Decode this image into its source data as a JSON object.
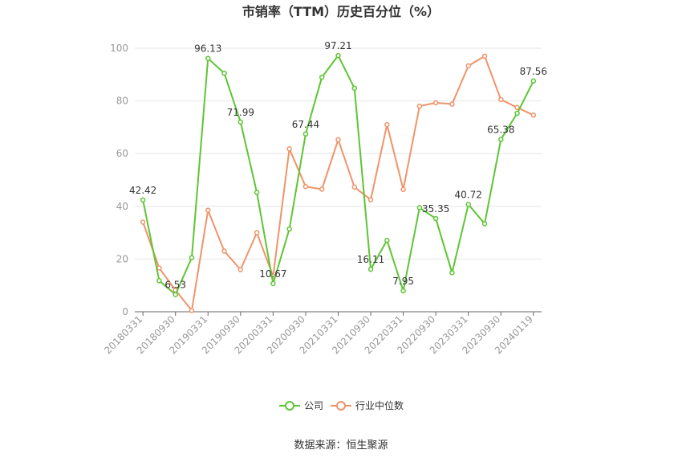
{
  "chart_data": {
    "type": "line",
    "title": "市销率（TTM）历史百分位（%）",
    "source": "数据来源：恒生聚源",
    "ylim": [
      0,
      100
    ],
    "yticks": [
      0,
      20,
      40,
      60,
      80,
      100
    ],
    "grid": true,
    "legend_position": "bottom",
    "categories": [
      "20180331",
      "20180630",
      "20180930",
      "20181231",
      "20190331",
      "20190630",
      "20190930",
      "20191231",
      "20200331",
      "20200630",
      "20200930",
      "20201231",
      "20210331",
      "20210630",
      "20210930",
      "20211231",
      "20220331",
      "20220630",
      "20220930",
      "20221231",
      "20230331",
      "20230630",
      "20230930",
      "20231231",
      "20240119"
    ],
    "x_tick_labels": [
      "20180331",
      "20180930",
      "20190331",
      "20190930",
      "20200331",
      "20200930",
      "20210331",
      "20210930",
      "20220331",
      "20220930",
      "20230331",
      "20230930",
      "20240119"
    ],
    "x_tick_indices": [
      0,
      2,
      4,
      6,
      8,
      10,
      12,
      14,
      16,
      18,
      20,
      22,
      24
    ],
    "series": [
      {
        "name": "公司",
        "color": "#5ec534",
        "values": [
          42.42,
          11.8,
          6.53,
          20.5,
          96.13,
          90.5,
          71.99,
          45.3,
          10.67,
          31.4,
          67.44,
          89.0,
          97.21,
          84.8,
          16.11,
          27.1,
          7.95,
          39.5,
          35.35,
          14.8,
          40.72,
          33.4,
          65.38,
          75.3,
          87.56
        ],
        "labels": {
          "0": "42.42",
          "2": "6.53",
          "4": "96.13",
          "6": "71.99",
          "8": "10.67",
          "10": "67.44",
          "12": "97.21",
          "14": "16.11",
          "16": "7.95",
          "18": "35.35",
          "20": "40.72",
          "22": "65.38",
          "24": "87.56"
        }
      },
      {
        "name": "行业中位数",
        "color": "#f0936a",
        "values": [
          34.0,
          16.6,
          8.2,
          0.5,
          38.5,
          23.0,
          16.0,
          30.0,
          13.5,
          61.8,
          47.5,
          46.5,
          65.3,
          47.3,
          42.5,
          71.0,
          46.4,
          78.0,
          79.3,
          78.8,
          93.3,
          97.0,
          80.5,
          77.5,
          74.6
        ]
      }
    ]
  }
}
